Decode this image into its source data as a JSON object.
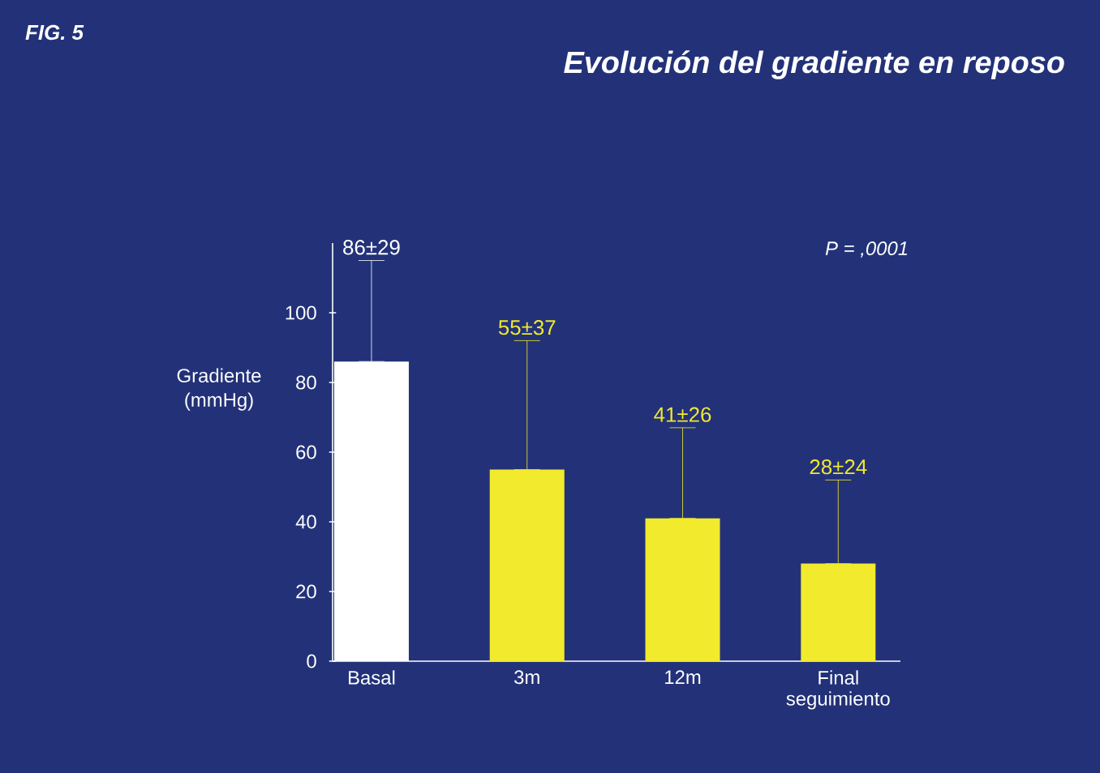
{
  "chart_data": {
    "type": "bar",
    "title": "Evolución del gradiente en reposo",
    "ylabel": "Gradiente (mmHg)",
    "annotations": [
      "FIG. 5",
      "P = ,0001",
      {
        "text": "86±29",
        "x": "Basal",
        "y": 115
      },
      {
        "text": "55±37",
        "x": "3m",
        "y": 92
      },
      {
        "text": "41±26",
        "x": "12m",
        "y": 67
      },
      {
        "text": "28±24",
        "x": "Final seguimiento",
        "y": 52
      }
    ],
    "categories": [
      "Basal",
      "3m",
      "12m",
      "Final seguimiento"
    ],
    "values": [
      86,
      55,
      41,
      28
    ],
    "colors": [
      "#ffffff",
      "#f2ea2c",
      "#f2ea2c",
      "#f2ea2c"
    ],
    "errors": [
      [
        86,
        115
      ],
      [
        55,
        92
      ],
      [
        41,
        67
      ],
      [
        28,
        52
      ]
    ],
    "ylim": [
      0,
      120
    ],
    "yticks": [
      0,
      20,
      40,
      60,
      80,
      100
    ]
  }
}
